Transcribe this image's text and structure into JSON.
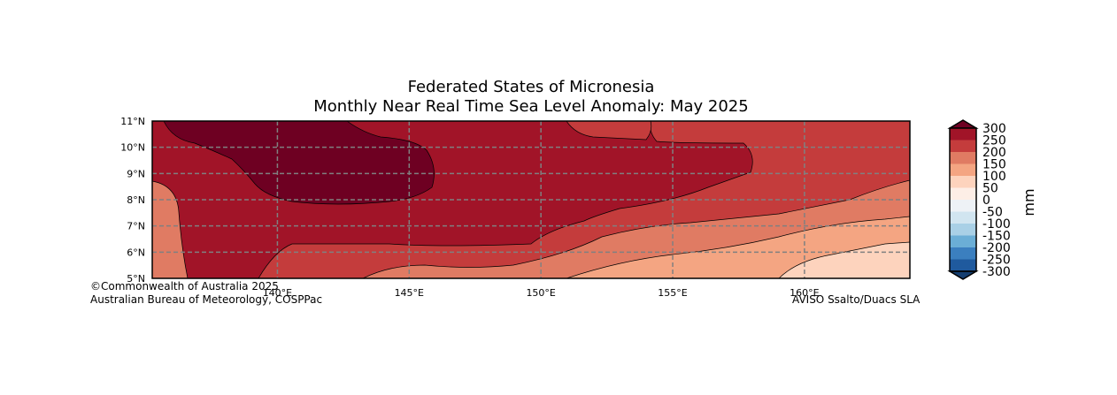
{
  "title_line1": "Federated States of Micronesia",
  "title_line2": "Monthly Near Real Time Sea Level Anomaly: May 2025",
  "map": {
    "lon_range": [
      135.25,
      164
    ],
    "lat_range": [
      5,
      11
    ],
    "lon_ticks": [
      {
        "value": 140,
        "label": "140°E"
      },
      {
        "value": 145,
        "label": "145°E"
      },
      {
        "value": 150,
        "label": "150°E"
      },
      {
        "value": 155,
        "label": "155°E"
      },
      {
        "value": 160,
        "label": "160°E"
      }
    ],
    "lat_ticks": [
      {
        "value": 5,
        "label": "5°N"
      },
      {
        "value": 6,
        "label": "6°N"
      },
      {
        "value": 7,
        "label": "7°N"
      },
      {
        "value": 8,
        "label": "8°N"
      },
      {
        "value": 9,
        "label": "9°N"
      },
      {
        "value": 10,
        "label": "10°N"
      },
      {
        "value": 11,
        "label": "11°N"
      }
    ],
    "grid": "dashed"
  },
  "colorbar": {
    "unit": "mm",
    "tick_labels": [
      "300",
      "250",
      "200",
      "150",
      "100",
      "50",
      "0",
      "-50",
      "-100",
      "-150",
      "-200",
      "-250",
      "-300"
    ],
    "colors_top_to_bottom": [
      "#a11428",
      "#c43c3c",
      "#e07b63",
      "#f4a582",
      "#fdd3bd",
      "#fdeee6",
      "#eef2f6",
      "#d1e5f0",
      "#a9d0e6",
      "#6baed6",
      "#3b7fbf",
      "#1f5a9e"
    ],
    "extend_top_color": "#6e0022",
    "extend_bottom_color": "#143d6f"
  },
  "credits": {
    "line1": "©Commonwealth of Australia 2025",
    "line2": "Australian Bureau of Meteorology, COSPPac",
    "source": "AVISO Ssalto/Duacs SLA"
  }
}
